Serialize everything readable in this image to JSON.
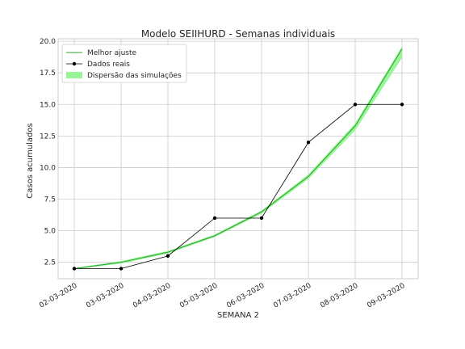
{
  "chart_data": {
    "type": "line",
    "title": "Modelo SEIIHURD - Semanas individuais",
    "xlabel": "SEMANA 2",
    "ylabel": "Casos acumulados",
    "categories": [
      "02-03-2020",
      "03-03-2020",
      "04-03-2020",
      "05-03-2020",
      "06-03-2020",
      "07-03-2020",
      "08-03-2020",
      "09-03-2020"
    ],
    "ylim": [
      1.2,
      20.2
    ],
    "yticks": [
      "2.5",
      "5.0",
      "7.5",
      "10.0",
      "12.5",
      "15.0",
      "17.5",
      "20.0"
    ],
    "grid": true,
    "legend_position": "top-left",
    "series": [
      {
        "name": "Melhor ajuste",
        "kind": "line",
        "color": "#2ca02c",
        "values": [
          2.0,
          2.5,
          3.3,
          4.6,
          6.5,
          9.3,
          13.3,
          19.4
        ]
      },
      {
        "name": "Dados reais",
        "kind": "line-markers",
        "color": "#000000",
        "values": [
          2,
          2,
          3,
          6,
          6,
          12,
          15,
          15
        ]
      },
      {
        "name": "Dispersão das simulações",
        "kind": "band",
        "color": "#98f598",
        "lower": [
          1.95,
          2.4,
          3.2,
          4.5,
          6.35,
          9.1,
          12.95,
          18.7
        ],
        "upper": [
          2.05,
          2.6,
          3.4,
          4.7,
          6.6,
          9.45,
          13.5,
          19.6
        ]
      }
    ]
  }
}
